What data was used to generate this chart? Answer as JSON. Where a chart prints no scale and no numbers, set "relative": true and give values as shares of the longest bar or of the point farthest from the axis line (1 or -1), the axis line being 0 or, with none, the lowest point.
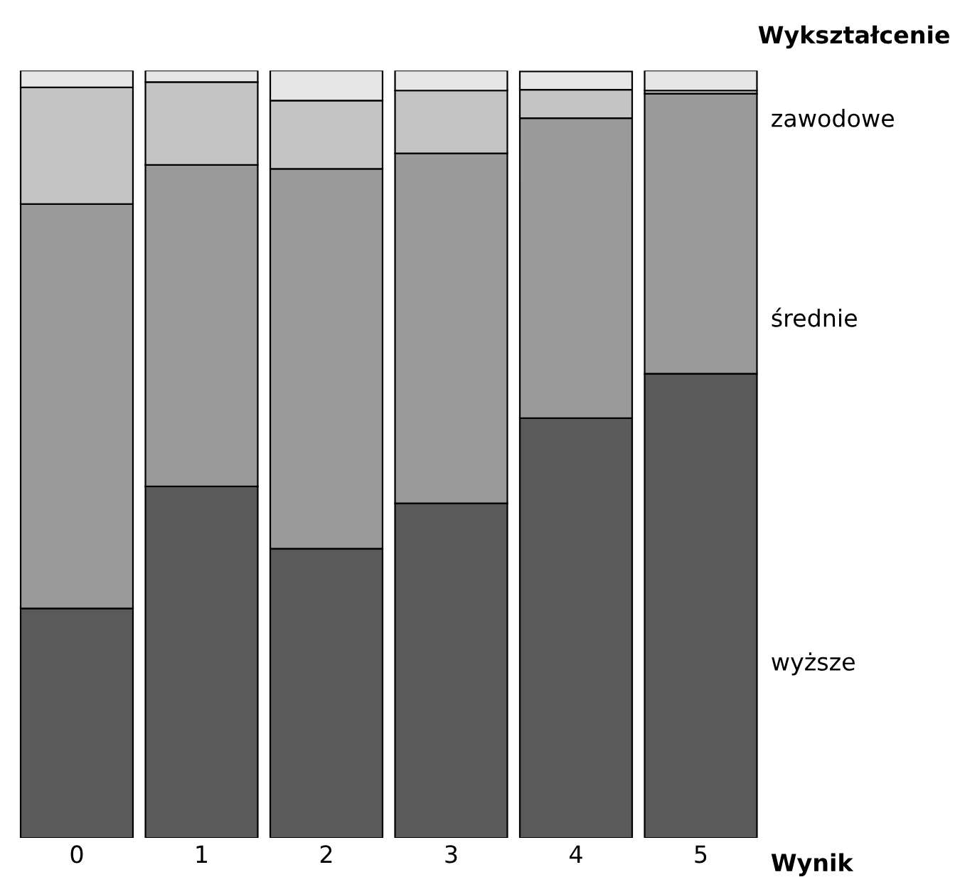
{
  "chart_data": {
    "type": "bar",
    "stacked": true,
    "relative": true,
    "categories": [
      "0",
      "1",
      "2",
      "3",
      "4",
      "5"
    ],
    "xlabel": "Wynik",
    "legend_title": "Wykształcenie",
    "series": [
      {
        "name": "wyższe",
        "color": "#5a5a5a",
        "values": [
          0.299,
          0.458,
          0.377,
          0.436,
          0.547,
          0.605
        ]
      },
      {
        "name": "średnie",
        "color": "#9a9a9a",
        "values": [
          0.527,
          0.419,
          0.495,
          0.456,
          0.391,
          0.365
        ]
      },
      {
        "name": "zawodowe",
        "color": "#c4c4c4",
        "values": [
          0.152,
          0.108,
          0.089,
          0.082,
          0.037,
          0.004
        ]
      },
      {
        "color": "#e6e6e6",
        "values": [
          0.022,
          0.015,
          0.039,
          0.026,
          0.024,
          0.026
        ]
      }
    ]
  }
}
